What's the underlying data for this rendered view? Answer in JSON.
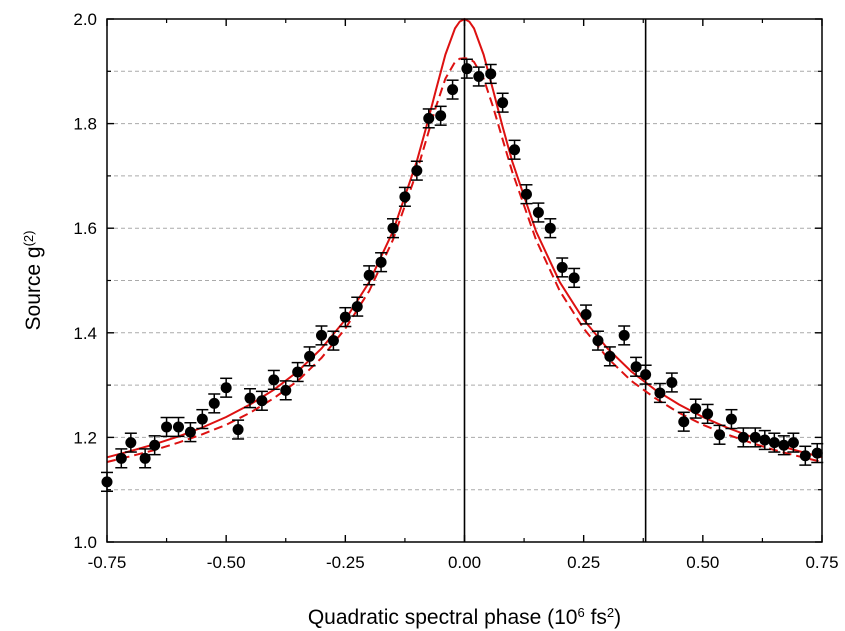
{
  "chart_data": {
    "type": "scatter",
    "title": "",
    "xlabel": {
      "pre": "Quadratic spectral phase (10",
      "sup1": "6",
      "mid": " fs",
      "sup2": "2",
      "post": ")"
    },
    "ylabel": {
      "pre": "Source g",
      "sup": "(2)"
    },
    "xlim": [
      -0.75,
      0.75
    ],
    "ylim": [
      1.0,
      2.0
    ],
    "xticks": [
      -0.75,
      -0.5,
      -0.25,
      0.0,
      0.25,
      0.5,
      0.75
    ],
    "xtick_labels": [
      "-0.75",
      "-0.50",
      "-0.25",
      "0.00",
      "0.25",
      "0.50",
      "0.75"
    ],
    "yticks": [
      1.0,
      1.2,
      1.4,
      1.6,
      1.8,
      2.0
    ],
    "ytick_labels": [
      "1.0",
      "1.2",
      "1.4",
      "1.6",
      "1.8",
      "2.0"
    ],
    "grid": "horizontal dashed",
    "vertical_lines": [
      0.0,
      0.38
    ],
    "colors": {
      "data": "#000000",
      "fit": "#dd1111",
      "grid": "#aaaaaa"
    },
    "series": [
      {
        "kind": "points-with-error",
        "error": 0.018,
        "x": [
          -0.75,
          -0.72,
          -0.7,
          -0.67,
          -0.65,
          -0.625,
          -0.6,
          -0.575,
          -0.55,
          -0.525,
          -0.5,
          -0.475,
          -0.45,
          -0.425,
          -0.4,
          -0.375,
          -0.35,
          -0.325,
          -0.3,
          -0.275,
          -0.25,
          -0.225,
          -0.2,
          -0.175,
          -0.15,
          -0.125,
          -0.1,
          -0.075,
          -0.05,
          -0.025,
          0.005,
          0.03,
          0.055,
          0.08,
          0.105,
          0.13,
          0.155,
          0.18,
          0.205,
          0.23,
          0.255,
          0.28,
          0.305,
          0.335,
          0.36,
          0.38,
          0.41,
          0.435,
          0.46,
          0.485,
          0.51,
          0.535,
          0.56,
          0.585,
          0.61,
          0.63,
          0.65,
          0.67,
          0.69,
          0.715,
          0.74
        ],
        "y": [
          1.115,
          1.16,
          1.19,
          1.16,
          1.185,
          1.22,
          1.22,
          1.21,
          1.235,
          1.265,
          1.295,
          1.215,
          1.275,
          1.27,
          1.31,
          1.29,
          1.325,
          1.355,
          1.395,
          1.385,
          1.43,
          1.45,
          1.51,
          1.535,
          1.6,
          1.66,
          1.71,
          1.81,
          1.815,
          1.865,
          1.905,
          1.89,
          1.895,
          1.84,
          1.75,
          1.665,
          1.63,
          1.6,
          1.525,
          1.505,
          1.435,
          1.385,
          1.355,
          1.395,
          1.335,
          1.32,
          1.285,
          1.305,
          1.23,
          1.255,
          1.245,
          1.205,
          1.235,
          1.2,
          1.2,
          1.195,
          1.19,
          1.185,
          1.19,
          1.165,
          1.17
        ]
      },
      {
        "kind": "line",
        "style": "solid",
        "x": [
          -0.75,
          -0.7,
          -0.65,
          -0.6,
          -0.55,
          -0.5,
          -0.45,
          -0.4,
          -0.35,
          -0.3,
          -0.25,
          -0.2,
          -0.15,
          -0.1,
          -0.08,
          -0.06,
          -0.04,
          -0.02,
          -0.01,
          0.0,
          0.01,
          0.02,
          0.04,
          0.06,
          0.08,
          0.1,
          0.15,
          0.2,
          0.25,
          0.3,
          0.35,
          0.4,
          0.45,
          0.5,
          0.55,
          0.6,
          0.65,
          0.7,
          0.75
        ],
        "y": [
          1.162,
          1.174,
          1.187,
          1.202,
          1.219,
          1.239,
          1.263,
          1.291,
          1.326,
          1.37,
          1.425,
          1.497,
          1.594,
          1.728,
          1.794,
          1.864,
          1.932,
          1.982,
          1.995,
          2.0,
          1.995,
          1.982,
          1.932,
          1.864,
          1.794,
          1.728,
          1.594,
          1.497,
          1.425,
          1.37,
          1.326,
          1.291,
          1.263,
          1.239,
          1.219,
          1.202,
          1.187,
          1.174,
          1.162
        ]
      },
      {
        "kind": "line",
        "style": "dashed",
        "x": [
          -0.75,
          -0.7,
          -0.65,
          -0.6,
          -0.55,
          -0.5,
          -0.45,
          -0.4,
          -0.35,
          -0.3,
          -0.25,
          -0.2,
          -0.15,
          -0.1,
          -0.08,
          -0.06,
          -0.04,
          -0.02,
          -0.01,
          0.0,
          0.01,
          0.02,
          0.04,
          0.06,
          0.08,
          0.1,
          0.15,
          0.2,
          0.25,
          0.3,
          0.35,
          0.4,
          0.45,
          0.5,
          0.55,
          0.6,
          0.65,
          0.7,
          0.75
        ],
        "y": [
          1.153,
          1.164,
          1.176,
          1.19,
          1.206,
          1.224,
          1.247,
          1.275,
          1.308,
          1.352,
          1.408,
          1.48,
          1.578,
          1.708,
          1.77,
          1.832,
          1.886,
          1.918,
          1.924,
          1.925,
          1.924,
          1.918,
          1.886,
          1.832,
          1.77,
          1.708,
          1.578,
          1.48,
          1.408,
          1.352,
          1.308,
          1.275,
          1.247,
          1.224,
          1.206,
          1.19,
          1.176,
          1.164,
          1.153
        ]
      }
    ]
  }
}
